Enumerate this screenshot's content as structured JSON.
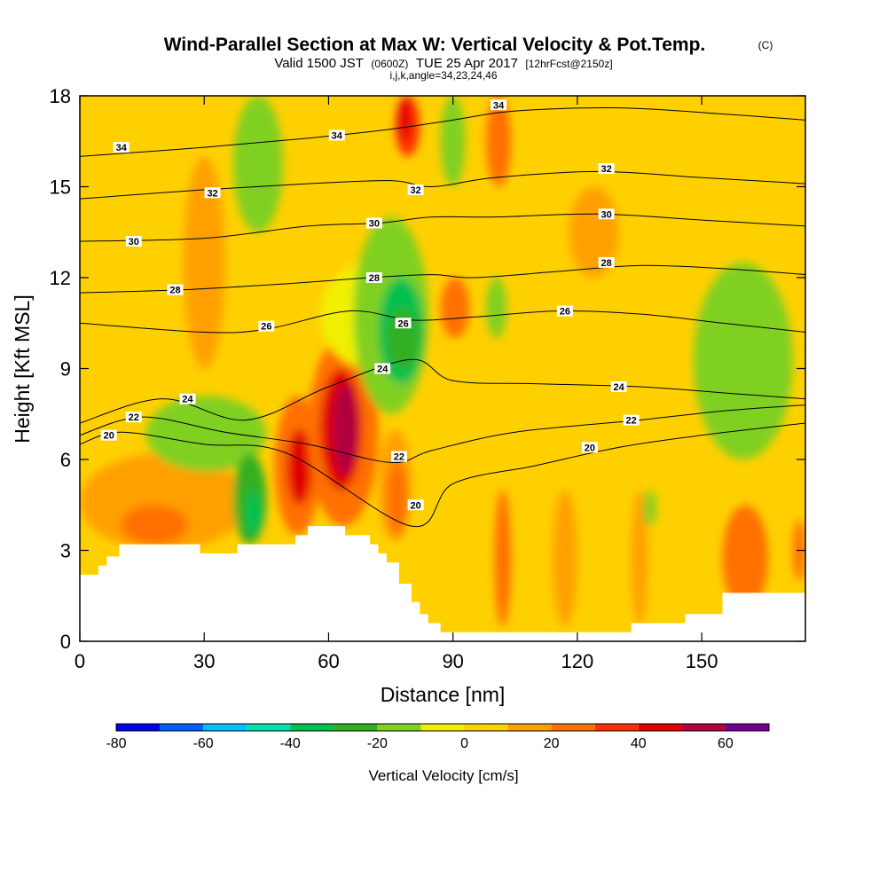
{
  "chart_data": {
    "type": "heatmap",
    "title": "Wind-Parallel Section at Max W: Vertical Velocity & Pot.Temp.",
    "title_mark": "(C)",
    "subtitle_parts": [
      "Valid 1500 JST",
      "(0600Z)",
      "TUE 25 Apr 2017",
      "[12hrFcst@2150z]"
    ],
    "subtitle2": "i,j,k,angle=34,23,24,46",
    "xlabel": "Distance [nm]",
    "ylabel": "Height [Kft MSL]",
    "xlim": [
      0,
      175
    ],
    "ylim": [
      0,
      18
    ],
    "xticks": [
      0,
      30,
      60,
      90,
      120,
      150
    ],
    "yticks": [
      0,
      3,
      6,
      9,
      12,
      15,
      18
    ],
    "colorbar": {
      "label": "Vertical Velocity [cm/s]",
      "ticks": [
        -80,
        -60,
        -40,
        -20,
        0,
        20,
        40,
        60
      ],
      "bounds": [
        -80,
        -70,
        -60,
        -50,
        -40,
        -30,
        -20,
        -10,
        0,
        10,
        20,
        30,
        40,
        50,
        60,
        70
      ],
      "colors": [
        "#0000f0",
        "#0060ff",
        "#00c0ff",
        "#00e0b0",
        "#00c050",
        "#30b020",
        "#80d020",
        "#f0f000",
        "#ffd000",
        "#ffa000",
        "#ff7000",
        "#ff3000",
        "#e00000",
        "#b00040",
        "#700090"
      ]
    },
    "terrain_height_kft": [
      [
        0,
        2.2
      ],
      [
        4.5,
        2.2
      ],
      [
        4.5,
        2.5
      ],
      [
        6.5,
        2.5
      ],
      [
        6.5,
        2.8
      ],
      [
        9.5,
        2.8
      ],
      [
        9.5,
        3.2
      ],
      [
        29,
        3.2
      ],
      [
        29,
        2.9
      ],
      [
        38,
        2.9
      ],
      [
        38,
        3.2
      ],
      [
        52,
        3.2
      ],
      [
        52,
        3.5
      ],
      [
        55,
        3.5
      ],
      [
        55,
        3.8
      ],
      [
        64,
        3.8
      ],
      [
        64,
        3.5
      ],
      [
        70,
        3.5
      ],
      [
        70,
        3.2
      ],
      [
        72,
        3.2
      ],
      [
        72,
        2.9
      ],
      [
        74,
        2.9
      ],
      [
        74,
        2.6
      ],
      [
        77,
        2.6
      ],
      [
        77,
        1.9
      ],
      [
        80,
        1.9
      ],
      [
        80,
        1.3
      ],
      [
        82,
        1.3
      ],
      [
        82,
        0.9
      ],
      [
        84,
        0.9
      ],
      [
        84,
        0.6
      ],
      [
        87,
        0.6
      ],
      [
        87,
        0.3
      ],
      [
        133,
        0.3
      ],
      [
        133,
        0.6
      ],
      [
        146,
        0.6
      ],
      [
        146,
        0.9
      ],
      [
        155,
        0.9
      ],
      [
        155,
        1.6
      ],
      [
        175,
        1.6
      ]
    ],
    "velocity_cells": [
      {
        "x": [
          0,
          40
        ],
        "y": [
          3,
          6.2
        ],
        "w": 10
      },
      {
        "x": [
          10,
          26
        ],
        "y": [
          3.2,
          4.5
        ],
        "w": 20
      },
      {
        "x": [
          26,
          40
        ],
        "y": [
          3.5,
          5.5
        ],
        "w": 10
      },
      {
        "x": [
          16,
          45
        ],
        "y": [
          5.6,
          8.1
        ],
        "w": -20
      },
      {
        "x": [
          37,
          45
        ],
        "y": [
          3.2,
          6.2
        ],
        "w": -30
      },
      {
        "x": [
          40,
          44
        ],
        "y": [
          3.5,
          5
        ],
        "w": -40
      },
      {
        "x": [
          47,
          58
        ],
        "y": [
          3.5,
          8.1
        ],
        "w": 20
      },
      {
        "x": [
          50,
          56
        ],
        "y": [
          4.5,
          7
        ],
        "w": 40
      },
      {
        "x": [
          55,
          72
        ],
        "y": [
          3.8,
          10
        ],
        "w": 20
      },
      {
        "x": [
          58,
          68
        ],
        "y": [
          5,
          9
        ],
        "w": 40
      },
      {
        "x": [
          61,
          67
        ],
        "y": [
          5.5,
          8.5
        ],
        "w": 50
      },
      {
        "x": [
          72,
          80
        ],
        "y": [
          3.3,
          7
        ],
        "w": 10
      },
      {
        "x": [
          74,
          79
        ],
        "y": [
          3.5,
          6
        ],
        "w": 20
      },
      {
        "x": [
          58,
          82
        ],
        "y": [
          9,
          12.5
        ],
        "w": -10
      },
      {
        "x": [
          66,
          84
        ],
        "y": [
          7.5,
          14
        ],
        "w": -20
      },
      {
        "x": [
          72,
          83
        ],
        "y": [
          8.5,
          12
        ],
        "w": -40
      },
      {
        "x": [
          74,
          82
        ],
        "y": [
          9,
          11
        ],
        "w": -30
      },
      {
        "x": [
          37,
          49
        ],
        "y": [
          13.5,
          18
        ],
        "w": -20
      },
      {
        "x": [
          87,
          93
        ],
        "y": [
          15,
          18
        ],
        "w": -20
      },
      {
        "x": [
          76,
          82
        ],
        "y": [
          16,
          18
        ],
        "w": 30
      },
      {
        "x": [
          77,
          80
        ],
        "y": [
          16.5,
          18
        ],
        "w": 40
      },
      {
        "x": [
          87,
          94
        ],
        "y": [
          10,
          12
        ],
        "w": 20
      },
      {
        "x": [
          98,
          104
        ],
        "y": [
          15,
          18
        ],
        "w": 20
      },
      {
        "x": [
          98,
          103
        ],
        "y": [
          10,
          12
        ],
        "w": -20
      },
      {
        "x": [
          148,
          172
        ],
        "y": [
          6,
          12.5
        ],
        "w": -20
      },
      {
        "x": [
          100,
          104
        ],
        "y": [
          0.5,
          5
        ],
        "w": 20
      },
      {
        "x": [
          114,
          120
        ],
        "y": [
          0.5,
          5
        ],
        "w": 10
      },
      {
        "x": [
          133,
          137
        ],
        "y": [
          0.5,
          5
        ],
        "w": 10
      },
      {
        "x": [
          155,
          166
        ],
        "y": [
          1,
          4.5
        ],
        "w": 20
      },
      {
        "x": [
          172,
          175
        ],
        "y": [
          2,
          4
        ],
        "w": 20
      },
      {
        "x": [
          136,
          139
        ],
        "y": [
          3.8,
          5
        ],
        "w": -20
      },
      {
        "x": [
          118,
          130
        ],
        "y": [
          12,
          15
        ],
        "w": 10
      },
      {
        "x": [
          25,
          35
        ],
        "y": [
          9,
          16
        ],
        "w": 10
      }
    ],
    "theta_contours": [
      {
        "level": 20,
        "x": [
          0,
          10,
          30,
          50,
          80,
          90,
          110,
          130,
          150,
          175
        ],
        "y": [
          6.5,
          6.9,
          6.5,
          6.2,
          3.8,
          5.2,
          5.8,
          6.4,
          6.8,
          7.2
        ]
      },
      {
        "level": 22,
        "x": [
          0,
          15,
          35,
          55,
          75,
          85,
          105,
          135,
          155,
          175
        ],
        "y": [
          6.8,
          7.4,
          6.9,
          6.5,
          5.9,
          6.3,
          6.9,
          7.3,
          7.6,
          7.8
        ]
      },
      {
        "level": 24,
        "x": [
          0,
          20,
          40,
          60,
          80,
          90,
          110,
          135,
          155,
          175
        ],
        "y": [
          7.2,
          8.0,
          7.3,
          8.4,
          9.3,
          8.6,
          8.5,
          8.4,
          8.2,
          8.0
        ]
      },
      {
        "level": 26,
        "x": [
          0,
          30,
          45,
          65,
          80,
          95,
          115,
          135,
          155,
          175
        ],
        "y": [
          10.5,
          10.2,
          10.3,
          10.9,
          10.6,
          10.7,
          10.9,
          10.8,
          10.5,
          10.2
        ]
      },
      {
        "level": 28,
        "x": [
          0,
          25,
          50,
          70,
          85,
          95,
          115,
          135,
          155,
          175
        ],
        "y": [
          11.5,
          11.6,
          11.8,
          12.0,
          12.1,
          12.0,
          12.2,
          12.4,
          12.3,
          12.1
        ]
      },
      {
        "level": 30,
        "x": [
          0,
          30,
          55,
          72,
          85,
          100,
          125,
          150,
          175
        ],
        "y": [
          13.2,
          13.3,
          13.7,
          13.8,
          14.0,
          14.0,
          14.1,
          13.9,
          13.7
        ]
      },
      {
        "level": 32,
        "x": [
          0,
          30,
          55,
          75,
          85,
          100,
          125,
          150,
          175
        ],
        "y": [
          14.6,
          14.9,
          15.1,
          15.2,
          15.0,
          15.3,
          15.5,
          15.3,
          15.1
        ]
      },
      {
        "level": 34,
        "x": [
          0,
          30,
          55,
          75,
          90,
          105,
          130,
          155,
          175
        ],
        "y": [
          16.0,
          16.3,
          16.6,
          16.9,
          17.2,
          17.5,
          17.6,
          17.4,
          17.2
        ]
      }
    ],
    "contour_labels": [
      {
        "text": "34",
        "x": 10,
        "y": 16.3
      },
      {
        "text": "34",
        "x": 62,
        "y": 16.7
      },
      {
        "text": "34",
        "x": 101,
        "y": 17.7
      },
      {
        "text": "32",
        "x": 32,
        "y": 14.8
      },
      {
        "text": "32",
        "x": 81,
        "y": 14.9
      },
      {
        "text": "32",
        "x": 127,
        "y": 15.6
      },
      {
        "text": "30",
        "x": 13,
        "y": 13.2
      },
      {
        "text": "30",
        "x": 71,
        "y": 13.8
      },
      {
        "text": "30",
        "x": 127,
        "y": 14.1
      },
      {
        "text": "28",
        "x": 23,
        "y": 11.6
      },
      {
        "text": "28",
        "x": 71,
        "y": 12.0
      },
      {
        "text": "28",
        "x": 127,
        "y": 12.5
      },
      {
        "text": "26",
        "x": 45,
        "y": 10.4
      },
      {
        "text": "26",
        "x": 78,
        "y": 10.5
      },
      {
        "text": "26",
        "x": 117,
        "y": 10.9
      },
      {
        "text": "24",
        "x": 26,
        "y": 8.0
      },
      {
        "text": "24",
        "x": 73,
        "y": 9.0
      },
      {
        "text": "24",
        "x": 130,
        "y": 8.4
      },
      {
        "text": "22",
        "x": 13,
        "y": 7.4
      },
      {
        "text": "22",
        "x": 77,
        "y": 6.1
      },
      {
        "text": "22",
        "x": 133,
        "y": 7.3
      },
      {
        "text": "20",
        "x": 7,
        "y": 6.8
      },
      {
        "text": "20",
        "x": 81,
        "y": 4.5
      },
      {
        "text": "20",
        "x": 123,
        "y": 6.4
      }
    ]
  }
}
